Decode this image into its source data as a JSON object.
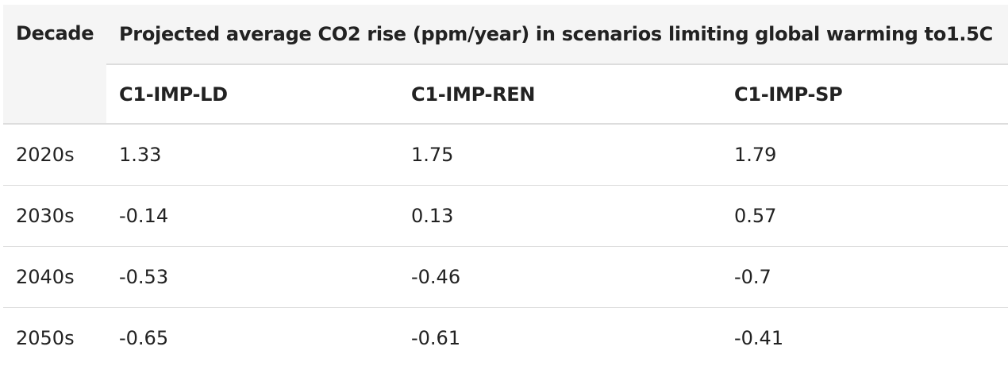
{
  "table": {
    "decade_header": "Decade",
    "group_header": "Projected average CO2 rise (ppm/year) in scenarios limiting global warming to1.5C",
    "scenarios": [
      "C1-IMP-LD",
      "C1-IMP-REN",
      "C1-IMP-SP"
    ],
    "rows": [
      {
        "decade": "2020s",
        "values": [
          "1.33",
          "1.75",
          "1.79"
        ]
      },
      {
        "decade": "2030s",
        "values": [
          "-0.14",
          "0.13",
          "0.57"
        ]
      },
      {
        "decade": "2040s",
        "values": [
          "-0.53",
          "-0.46",
          "-0.7"
        ]
      },
      {
        "decade": "2050s",
        "values": [
          "-0.65",
          "-0.61",
          "-0.41"
        ]
      }
    ]
  },
  "colors": {
    "header_background": "#f5f5f5",
    "border": "#dddddd",
    "text": "#222222"
  }
}
